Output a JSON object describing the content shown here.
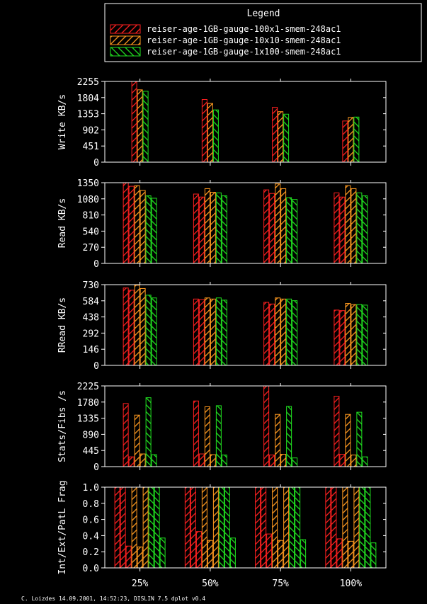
{
  "legend": {
    "title": "Legend",
    "entries": [
      {
        "name": "reiser-age-1GB-gauge-100x1-smem-248ac1",
        "color": "#ff2020",
        "hatch": "down"
      },
      {
        "name": "reiser-age-1GB-gauge-10x10-smem-248ac1",
        "color": "#ff9a20",
        "hatch": "down"
      },
      {
        "name": "reiser-age-1GB-gauge-1x100-smem-248ac1",
        "color": "#20e020",
        "hatch": "up"
      }
    ]
  },
  "footer": "C. Loizdes 14.09.2001, 14:52:23, DISLIN 7.5 dplot v0.4",
  "chart_data": [
    {
      "type": "bar",
      "ylabel": "Write KB/s",
      "ylim": [
        0,
        2255
      ],
      "yticks": [
        "0",
        "451",
        "902",
        "1353",
        "1804",
        "2255"
      ],
      "categories": [
        "25%",
        "50%",
        "75%",
        "100%"
      ],
      "bars_per_series": 1,
      "series": [
        {
          "values": [
            [
              2255
            ],
            [
              1750
            ],
            [
              1530
            ],
            [
              1150
            ]
          ]
        },
        {
          "values": [
            [
              2020
            ],
            [
              1640
            ],
            [
              1410
            ],
            [
              1250
            ]
          ]
        },
        {
          "values": [
            [
              1980
            ],
            [
              1460
            ],
            [
              1340
            ],
            [
              1260
            ]
          ]
        }
      ]
    },
    {
      "type": "bar",
      "ylabel": "Read KB/s",
      "ylim": [
        0,
        1350
      ],
      "yticks": [
        "0",
        "270",
        "540",
        "810",
        "1080",
        "1350"
      ],
      "categories": [
        "25%",
        "50%",
        "75%",
        "100%"
      ],
      "bars_per_series": 2,
      "series": [
        {
          "values": [
            [
              1370,
              1290
            ],
            [
              1160,
              1110
            ],
            [
              1230,
              1170
            ],
            [
              1180,
              1110
            ]
          ]
        },
        {
          "values": [
            [
              1300,
              1220
            ],
            [
              1250,
              1190
            ],
            [
              1330,
              1250
            ],
            [
              1300,
              1250
            ]
          ]
        },
        {
          "values": [
            [
              1130,
              1090
            ],
            [
              1180,
              1130
            ],
            [
              1100,
              1070
            ],
            [
              1180,
              1130
            ]
          ]
        }
      ]
    },
    {
      "type": "bar",
      "ylabel": "RRead KB/s",
      "ylim": [
        0,
        730
      ],
      "yticks": [
        "0",
        "146",
        "292",
        "438",
        "584",
        "730"
      ],
      "categories": [
        "25%",
        "50%",
        "75%",
        "100%"
      ],
      "bars_per_series": 2,
      "series": [
        {
          "values": [
            [
              700,
              680
            ],
            [
              600,
              595
            ],
            [
              570,
              555
            ],
            [
              500,
              495
            ]
          ]
        },
        {
          "values": [
            [
              725,
              695
            ],
            [
              610,
              600
            ],
            [
              610,
              600
            ],
            [
              560,
              550
            ]
          ]
        },
        {
          "values": [
            [
              635,
              610
            ],
            [
              610,
              590
            ],
            [
              600,
              585
            ],
            [
              550,
              545
            ]
          ]
        }
      ]
    },
    {
      "type": "bar",
      "ylabel": "Stats/Fibs /s",
      "ylim": [
        0,
        2225
      ],
      "yticks": [
        "0",
        "445",
        "890",
        "1335",
        "1780",
        "2225"
      ],
      "categories": [
        "25%",
        "50%",
        "75%",
        "100%"
      ],
      "bars_per_series": 2,
      "series": [
        {
          "values": [
            [
              1740,
              270
            ],
            [
              1810,
              350
            ],
            [
              2260,
              320
            ],
            [
              1940,
              340
            ]
          ]
        },
        {
          "values": [
            [
              1420,
              350
            ],
            [
              1650,
              330
            ],
            [
              1440,
              340
            ],
            [
              1440,
              320
            ]
          ]
        },
        {
          "values": [
            [
              1900,
              330
            ],
            [
              1680,
              320
            ],
            [
              1660,
              240
            ],
            [
              1500,
              270
            ]
          ]
        }
      ]
    },
    {
      "type": "bar",
      "ylabel": "Int/Ext/PatL Frag",
      "ylim": [
        0,
        1.0
      ],
      "yticks": [
        "0.0",
        "0.2",
        "0.4",
        "0.6",
        "0.8",
        "1.0"
      ],
      "categories": [
        "25%",
        "50%",
        "75%",
        "100%"
      ],
      "bars_per_series": 3,
      "series": [
        {
          "values": [
            [
              1.0,
              1.0,
              0.27
            ],
            [
              1.0,
              1.0,
              0.45
            ],
            [
              1.0,
              1.0,
              0.42
            ],
            [
              1.0,
              1.0,
              0.36
            ]
          ]
        },
        {
          "values": [
            [
              1.0,
              0.26,
              1.0
            ],
            [
              1.0,
              0.34,
              1.0
            ],
            [
              1.0,
              0.34,
              1.0
            ],
            [
              1.0,
              0.33,
              1.0
            ]
          ]
        },
        {
          "values": [
            [
              1.0,
              1.0,
              0.37
            ],
            [
              1.0,
              1.0,
              0.37
            ],
            [
              1.0,
              1.0,
              0.35
            ],
            [
              1.0,
              1.0,
              0.31
            ]
          ]
        }
      ]
    }
  ]
}
